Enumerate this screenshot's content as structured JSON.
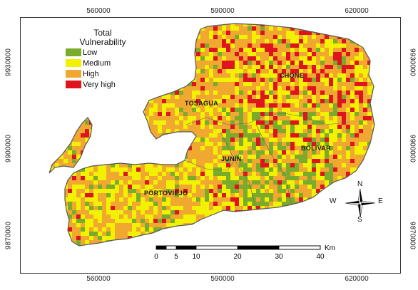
{
  "legend": {
    "title_line1": "Total",
    "title_line2": "Vulnerability",
    "items": [
      {
        "label": "Low",
        "color": "#7bab2a"
      },
      {
        "label": "Medium",
        "color": "#f2f200"
      },
      {
        "label": "High",
        "color": "#f0a830"
      },
      {
        "label": "Very high",
        "color": "#e0141e"
      }
    ]
  },
  "axes": {
    "x_ticks": [
      "560000",
      "590000",
      "620000"
    ],
    "y_ticks_left": [
      "9930000",
      "9900000",
      "9870000"
    ],
    "y_ticks_right": [
      "9930000",
      "9900000",
      "9870000"
    ]
  },
  "places": {
    "chone": "CHONE",
    "tosagua": "TOSAGUA",
    "junin": "JUNIN",
    "bolivar": "BOLIVAR",
    "portoviejo": "PORTOVIEJO"
  },
  "scale": {
    "unit": "Km",
    "ticks": [
      "0",
      "5",
      "10",
      "20",
      "30",
      "40"
    ]
  },
  "compass": {
    "n": "N",
    "s": "S",
    "e": "E",
    "w": "W"
  }
}
